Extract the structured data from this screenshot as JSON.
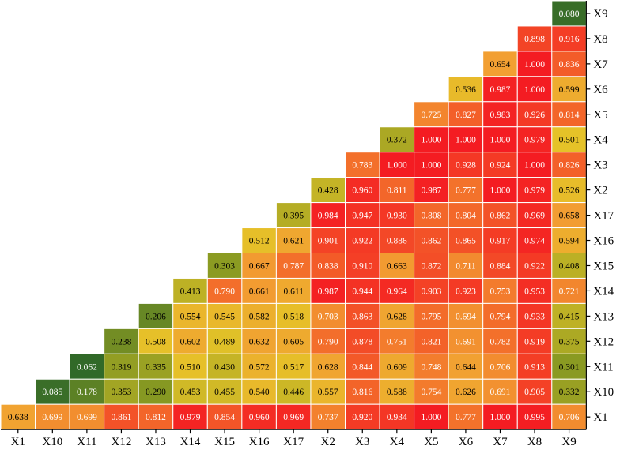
{
  "chart_data": {
    "type": "heatmap",
    "title": "",
    "xlabel": "",
    "ylabel": "",
    "x_categories": [
      "X1",
      "X10",
      "X11",
      "X12",
      "X13",
      "X14",
      "X15",
      "X16",
      "X17",
      "X2",
      "X3",
      "X4",
      "X5",
      "X6",
      "X7",
      "X8",
      "X9"
    ],
    "y_categories_top_to_bottom": [
      "X9",
      "X8",
      "X7",
      "X6",
      "X5",
      "X4",
      "X3",
      "X2",
      "X17",
      "X16",
      "X15",
      "X14",
      "X13",
      "X12",
      "X11",
      "X10",
      "X1"
    ],
    "rows": [
      [
        "0.080"
      ],
      [
        "0.898",
        "0.916"
      ],
      [
        "0.654",
        "1.000",
        "0.836"
      ],
      [
        "0.536",
        "0.987",
        "1.000",
        "0.599"
      ],
      [
        "0.725",
        "0.827",
        "0.983",
        "0.926",
        "0.814"
      ],
      [
        "0.372",
        "1.000",
        "1.000",
        "1.000",
        "0.979",
        "0.501"
      ],
      [
        "0.783",
        "1.000",
        "1.000",
        "0.928",
        "0.924",
        "1.000",
        "0.826"
      ],
      [
        "0.428",
        "0.960",
        "0.811",
        "0.987",
        "0.777",
        "1.000",
        "0.979",
        "0.526"
      ],
      [
        "0.395",
        "0.984",
        "0.947",
        "0.930",
        "0.808",
        "0.804",
        "0.862",
        "0.969",
        "0.658"
      ],
      [
        "0.512",
        "0.621",
        "0.901",
        "0.922",
        "0.886",
        "0.862",
        "0.865",
        "0.917",
        "0.974",
        "0.594"
      ],
      [
        "0.303",
        "0.667",
        "0.787",
        "0.838",
        "0.910",
        "0.663",
        "0.872",
        "0.711",
        "0.884",
        "0.922",
        "0.408"
      ],
      [
        "0.413",
        "0.790",
        "0.661",
        "0.611",
        "0.987",
        "0.944",
        "0.964",
        "0.903",
        "0.923",
        "0.753",
        "0.953",
        "0.721"
      ],
      [
        "0.206",
        "0.554",
        "0.545",
        "0.582",
        "0.518",
        "0.703",
        "0.863",
        "0.628",
        "0.795",
        "0.694",
        "0.794",
        "0.933",
        "0.415"
      ],
      [
        "0.238",
        "0.508",
        "0.602",
        "0.489",
        "0.632",
        "0.605",
        "0.790",
        "0.878",
        "0.751",
        "0.821",
        "0.691",
        "0.782",
        "0.919",
        "0.375"
      ],
      [
        "0.062",
        "0.319",
        "0.335",
        "0.510",
        "0.430",
        "0.572",
        "0.517",
        "0.628",
        "0.844",
        "0.609",
        "0.748",
        "0.644",
        "0.706",
        "0.913",
        "0.301"
      ],
      [
        "0.085",
        "0.178",
        "0.353",
        "0.290",
        "0.453",
        "0.455",
        "0.540",
        "0.446",
        "0.557",
        "0.816",
        "0.588",
        "0.754",
        "0.626",
        "0.691",
        "0.905",
        "0.332"
      ],
      [
        "0.638",
        "0.699",
        "0.699",
        "0.861",
        "0.812",
        "0.979",
        "0.854",
        "0.960",
        "0.969",
        "0.737",
        "0.920",
        "0.934",
        "1.000",
        "0.777",
        "1.000",
        "0.995",
        "0.706"
      ]
    ],
    "colorscale": [
      "#1a5c2a",
      "#8a9a22",
      "#e5c228",
      "#f2a032",
      "#f36a2a",
      "#f41c22"
    ],
    "grid": false,
    "legend": "none"
  }
}
